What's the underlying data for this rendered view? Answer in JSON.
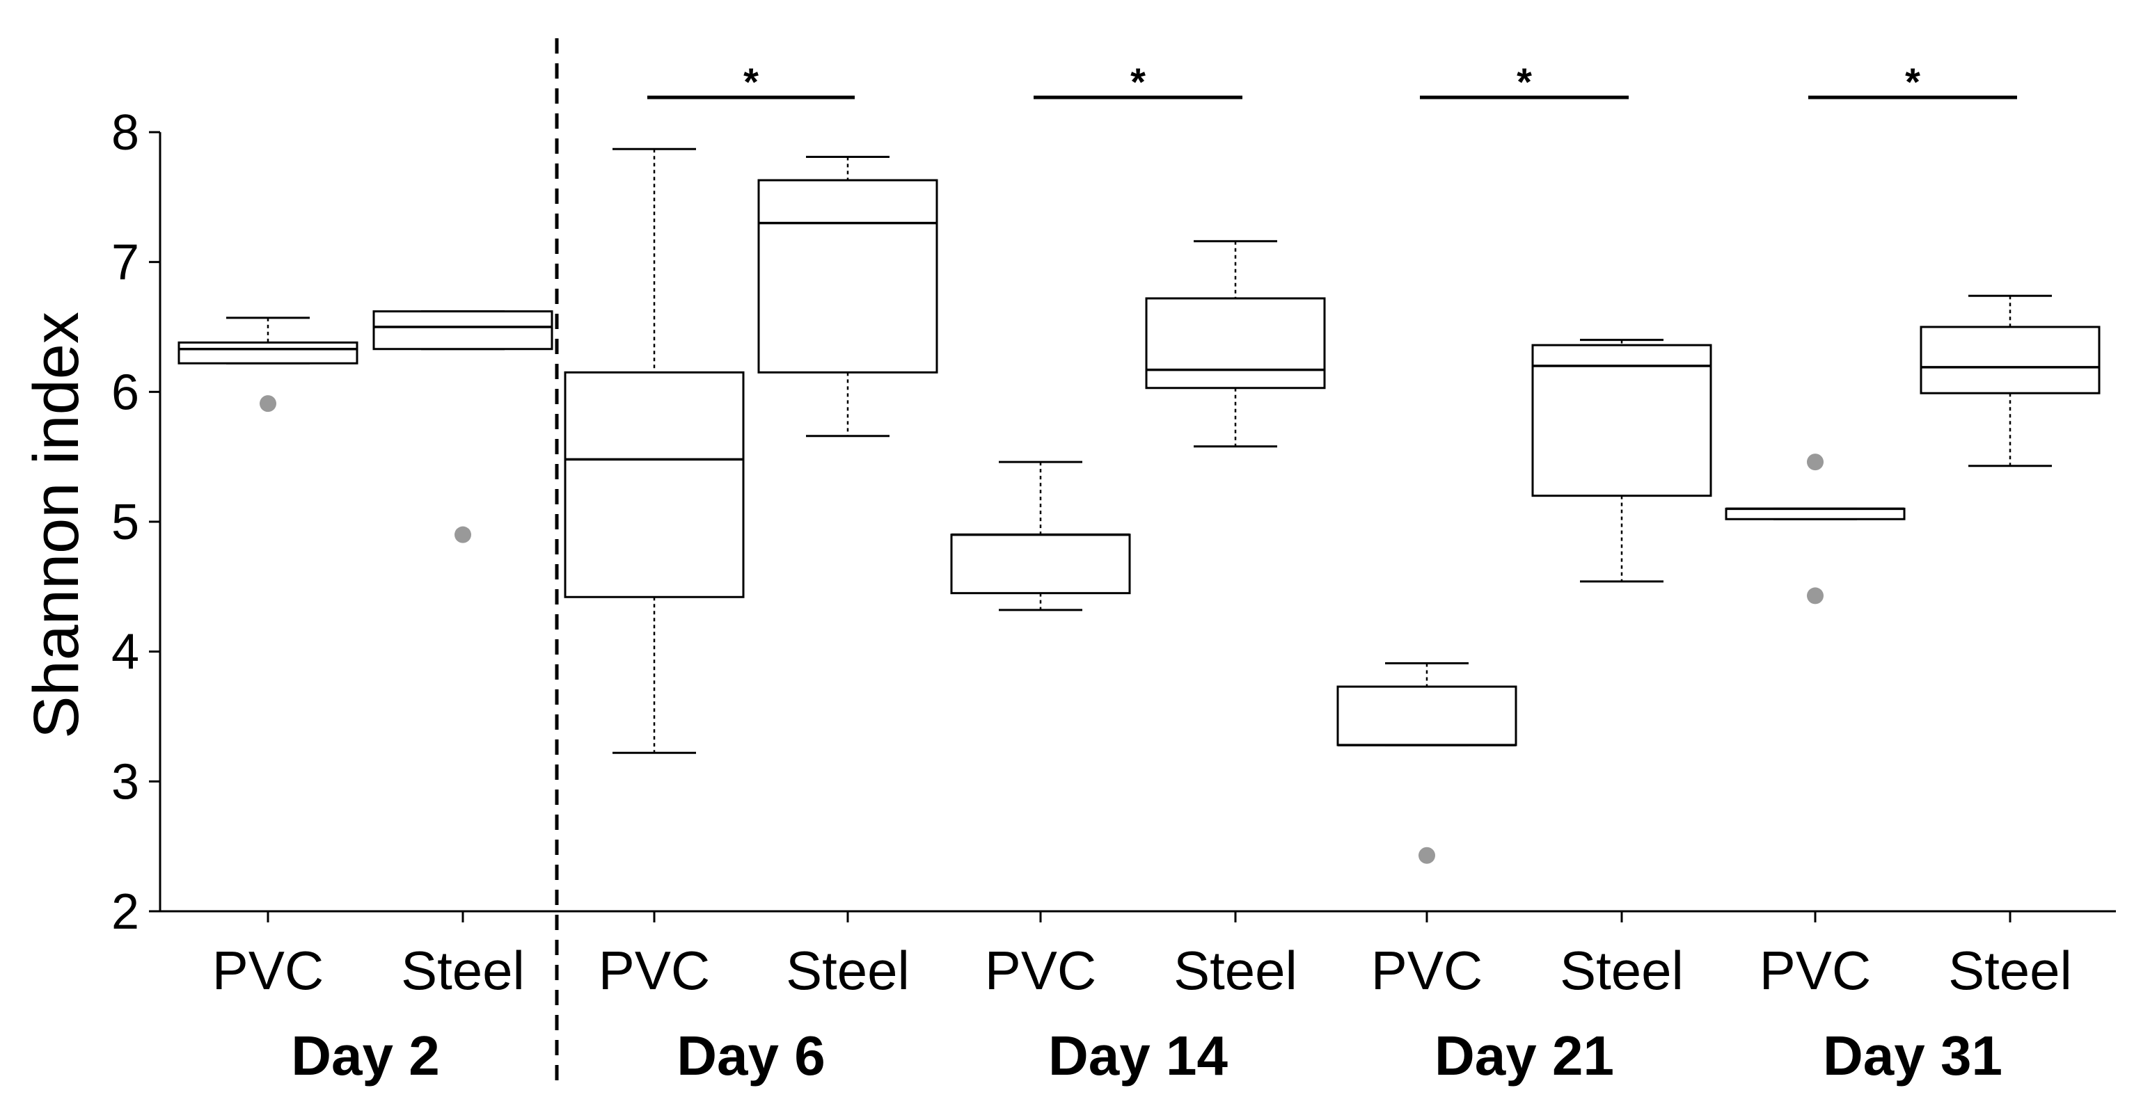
{
  "chart_data": {
    "type": "boxplot",
    "title": "",
    "ylabel": "Shannon index",
    "xlabel": "",
    "ylim": [
      2,
      8
    ],
    "yticks": [
      2,
      3,
      4,
      5,
      6,
      7,
      8
    ],
    "yticks_text": [
      "2",
      "3",
      "4",
      "5",
      "6",
      "7",
      "8"
    ],
    "grid": false,
    "colors": {
      "box": "#000000",
      "outlier": "#999999",
      "fill": "#ffffff"
    },
    "groups": [
      {
        "label": "Day 2",
        "significance": "",
        "boxes": [
          {
            "label": "PVC",
            "whisker_low": 6.22,
            "q1": 6.22,
            "median": 6.33,
            "q3": 6.38,
            "whisker_high": 6.57,
            "outliers": [
              5.91
            ]
          },
          {
            "label": "Steel",
            "whisker_low": 6.33,
            "q1": 6.33,
            "median": 6.5,
            "q3": 6.62,
            "whisker_high": 6.62,
            "outliers": [
              4.9
            ]
          }
        ]
      },
      {
        "label": "Day 6",
        "significance": "*",
        "boxes": [
          {
            "label": "PVC",
            "whisker_low": 3.22,
            "q1": 4.42,
            "median": 5.48,
            "q3": 6.15,
            "whisker_high": 7.87,
            "outliers": []
          },
          {
            "label": "Steel",
            "whisker_low": 5.66,
            "q1": 6.15,
            "median": 7.3,
            "q3": 7.63,
            "whisker_high": 7.81,
            "outliers": []
          }
        ]
      },
      {
        "label": "Day 14",
        "significance": "*",
        "boxes": [
          {
            "label": "PVC",
            "whisker_low": 4.32,
            "q1": 4.45,
            "median": 4.9,
            "q3": 4.9,
            "whisker_high": 5.46,
            "outliers": []
          },
          {
            "label": "Steel",
            "whisker_low": 5.58,
            "q1": 6.03,
            "median": 6.17,
            "q3": 6.72,
            "whisker_high": 7.16,
            "outliers": []
          }
        ]
      },
      {
        "label": "Day 21",
        "significance": "*",
        "boxes": [
          {
            "label": "PVC",
            "whisker_low": 3.28,
            "q1": 3.28,
            "median": 3.28,
            "q3": 3.73,
            "whisker_high": 3.91,
            "outliers": [
              2.43
            ]
          },
          {
            "label": "Steel",
            "whisker_low": 4.54,
            "q1": 5.2,
            "median": 6.2,
            "q3": 6.36,
            "whisker_high": 6.4,
            "outliers": []
          }
        ]
      },
      {
        "label": "Day 31",
        "significance": "*",
        "boxes": [
          {
            "label": "PVC",
            "whisker_low": 5.02,
            "q1": 5.02,
            "median": 5.1,
            "q3": 5.1,
            "whisker_high": 5.1,
            "outliers": [
              5.46,
              4.43
            ]
          },
          {
            "label": "Steel",
            "whisker_low": 5.43,
            "q1": 5.99,
            "median": 6.19,
            "q3": 6.5,
            "whisker_high": 6.74,
            "outliers": []
          }
        ]
      }
    ]
  }
}
